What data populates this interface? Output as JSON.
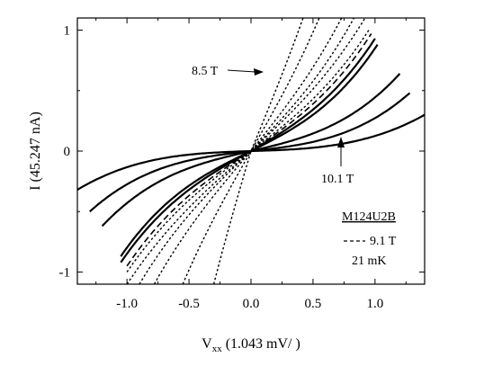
{
  "chart_data": {
    "type": "line",
    "xlabel_main": "V",
    "xlabel_sub": "xx",
    "xlabel_rest": " (1.043 mV/ )",
    "ylabel": "I (45.247 nA)",
    "xlim": [
      -1.4,
      1.4
    ],
    "ylim": [
      -1.1,
      1.1
    ],
    "xticks": [
      "-1.0",
      "-0.5",
      "0.0",
      "0.5",
      "1.0"
    ],
    "xtick_values": [
      -1.0,
      -0.5,
      0.0,
      0.5,
      1.0
    ],
    "yticks": [
      "-1",
      "0",
      "1"
    ],
    "ytick_values": [
      -1,
      0,
      1
    ],
    "annotations": {
      "top_label": "8.5 T",
      "bottom_label": "10.1 T"
    },
    "legend": {
      "sample": "M124U2B",
      "dashed_entry": "9.1 T",
      "temperature": "21 mK"
    },
    "series": [
      {
        "style": "dotted",
        "x_end": [
          -0.78,
          0.73
        ],
        "y_at_x_end": [
          -1.1,
          1.1
        ],
        "curvature": 0.15
      },
      {
        "style": "dotted",
        "x_end": [
          -0.9,
          0.83
        ],
        "y_at_x_end": [
          -1.1,
          1.1
        ],
        "curvature": 0.2
      },
      {
        "style": "dotted",
        "x_end": [
          -1.0,
          0.92
        ],
        "y_at_x_end": [
          -1.1,
          1.1
        ],
        "curvature": 0.2
      },
      {
        "style": "dotted",
        "x_end": [
          -1.0,
          0.95
        ],
        "y_at_x_end": [
          -1.0,
          1.0
        ],
        "curvature": 0.25
      },
      {
        "style": "dashed",
        "x_end": [
          -1.0,
          0.97
        ],
        "y_at_x_end": [
          -0.95,
          0.97
        ],
        "curvature": 0.3
      },
      {
        "style": "solid",
        "x_end": [
          -1.05,
          1.0
        ],
        "y_at_x_end": [
          -0.92,
          0.93
        ],
        "curvature": 0.35
      },
      {
        "style": "solid",
        "x_end": [
          -1.05,
          1.02
        ],
        "y_at_x_end": [
          -0.87,
          0.88
        ],
        "curvature": 0.4
      },
      {
        "style": "solid",
        "x_end": [
          -1.2,
          1.2
        ],
        "y_at_x_end": [
          -0.62,
          0.64
        ],
        "curvature": 0.55
      },
      {
        "style": "solid",
        "x_end": [
          -1.3,
          1.28
        ],
        "y_at_x_end": [
          -0.5,
          0.48
        ],
        "curvature": 0.7
      },
      {
        "style": "solid",
        "x_end": [
          -1.4,
          1.4
        ],
        "y_at_x_end": [
          -0.32,
          0.3
        ],
        "curvature": 0.85
      },
      {
        "style": "dotted",
        "x_end": [
          -0.55,
          0.55
        ],
        "y_at_x_end": [
          -1.1,
          1.1
        ],
        "curvature": 0.1
      },
      {
        "style": "dotted",
        "x_end": [
          -0.3,
          0.42
        ],
        "y_at_x_end": [
          -1.1,
          1.1
        ],
        "curvature": 0.05
      }
    ]
  }
}
